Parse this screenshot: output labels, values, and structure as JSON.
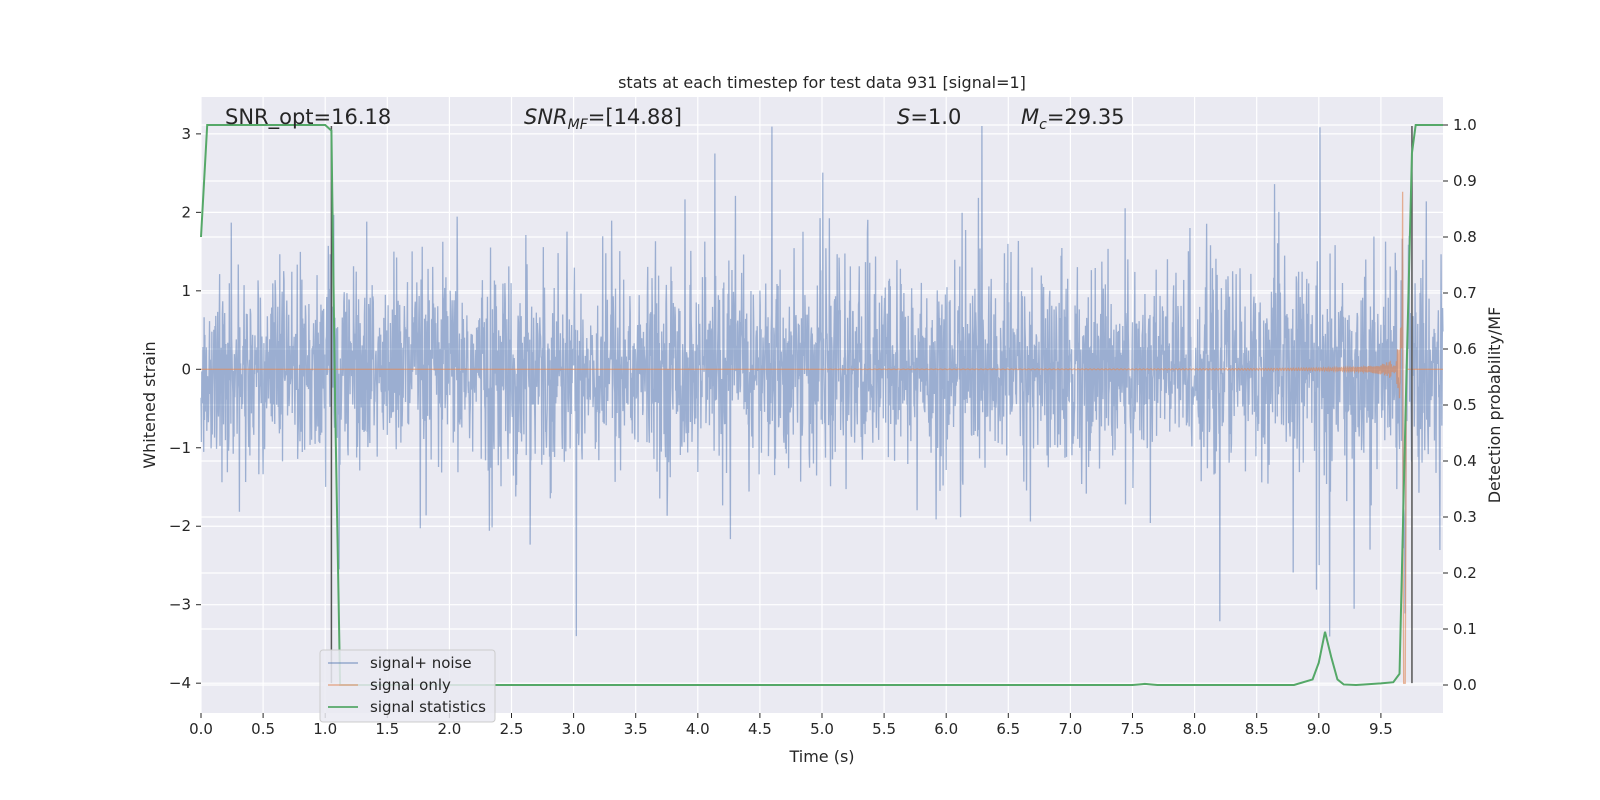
{
  "chart_data": {
    "type": "line",
    "title": "stats at each timestep for test data 931 [signal=1]",
    "xlabel": "Time (s)",
    "ylabel_left": "Whitened strain",
    "ylabel_right": "Detection probability/MF",
    "xlim": [
      0.0,
      10.0
    ],
    "ylim_left": [
      -4.38,
      3.47
    ],
    "ylim_right": [
      -0.05,
      1.05
    ],
    "x_ticks": [
      "0.0",
      "0.5",
      "1.0",
      "1.5",
      "2.0",
      "2.5",
      "3.0",
      "3.5",
      "4.0",
      "4.5",
      "5.0",
      "5.5",
      "6.0",
      "6.5",
      "7.0",
      "7.5",
      "8.0",
      "8.5",
      "9.0",
      "9.5"
    ],
    "x_tick_values": [
      0.0,
      0.5,
      1.0,
      1.5,
      2.0,
      2.5,
      3.0,
      3.5,
      4.0,
      4.5,
      5.0,
      5.5,
      6.0,
      6.5,
      7.0,
      7.5,
      8.0,
      8.5,
      9.0,
      9.5
    ],
    "y_left_ticks": [
      "3",
      "2",
      "1",
      "0",
      "−1",
      "−2",
      "−3",
      "−4"
    ],
    "y_left_tick_values": [
      3,
      2,
      1,
      0,
      -1,
      -2,
      -3,
      -4
    ],
    "y_right_ticks": [
      "1.0",
      "0.9",
      "0.8",
      "0.7",
      "0.6",
      "0.5",
      "0.4",
      "0.3",
      "0.2",
      "0.1",
      "0.0"
    ],
    "y_right_tick_values": [
      1.0,
      0.9,
      0.8,
      0.7,
      0.6,
      0.5,
      0.4,
      0.3,
      0.2,
      0.1,
      0.0
    ],
    "annotations": {
      "snr_opt": "SNR_opt=16.18",
      "snr_mf_base": "SNR",
      "snr_mf_sub": "MF",
      "snr_mf_value": "=[14.88]",
      "s_base": "S",
      "s_value": "=1.0",
      "mc_base": "M",
      "mc_sub": "c",
      "mc_value": "=29.35"
    },
    "grid": true,
    "legend_position": "lower-left",
    "series": [
      {
        "name": "signal+ noise",
        "color": "#4c72b0",
        "description_axis": "left",
        "noise_envelope": {
          "typical_max": 1.8,
          "peak_max": 3.1,
          "typical_min": -1.9,
          "peak_min": -3.4
        }
      },
      {
        "name": "signal only",
        "color": "#dd8452",
        "description_axis": "left",
        "chirp": {
          "start": 5.0,
          "merger": 9.68,
          "peak_amplitude": 3.0,
          "end_dip": -4.0
        }
      },
      {
        "name": "signal statistics",
        "color": "#55a868",
        "description_axis": "right",
        "points": [
          [
            0.0,
            0.8
          ],
          [
            0.05,
            1.0
          ],
          [
            0.1,
            1.0
          ],
          [
            1.0,
            1.0
          ],
          [
            1.05,
            0.99
          ],
          [
            1.08,
            0.5
          ],
          [
            1.12,
            0.0
          ],
          [
            1.2,
            0.0
          ],
          [
            2.0,
            0.0
          ],
          [
            7.5,
            0.0
          ],
          [
            7.6,
            0.002
          ],
          [
            7.7,
            0.0
          ],
          [
            8.8,
            0.0
          ],
          [
            8.95,
            0.01
          ],
          [
            9.0,
            0.04
          ],
          [
            9.05,
            0.095
          ],
          [
            9.1,
            0.05
          ],
          [
            9.15,
            0.01
          ],
          [
            9.2,
            0.001
          ],
          [
            9.3,
            0.0
          ],
          [
            9.5,
            0.003
          ],
          [
            9.6,
            0.005
          ],
          [
            9.65,
            0.02
          ],
          [
            9.7,
            0.5
          ],
          [
            9.75,
            0.95
          ],
          [
            9.78,
            1.0
          ],
          [
            10.0,
            1.0
          ]
        ]
      }
    ],
    "vertical_lines": [
      1.05,
      9.75
    ]
  }
}
